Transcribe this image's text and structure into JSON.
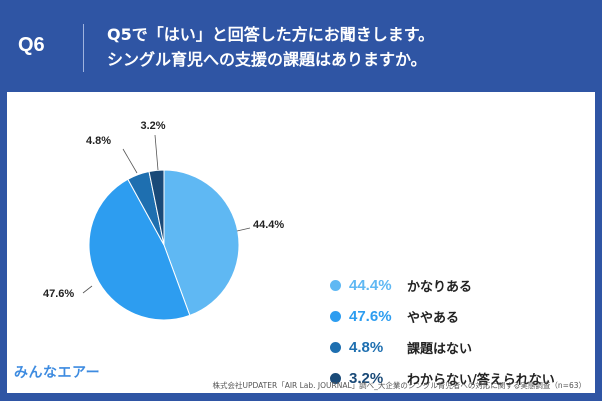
{
  "header": {
    "question_number": "Q6",
    "question_line1": "Q5で「はい」と回答した方にお聞きします。",
    "question_line2": "シングル育児への支援の課題はありますか。"
  },
  "chart_data": {
    "type": "pie",
    "title": "",
    "slices": [
      {
        "label": "かなりある",
        "value": 44.4,
        "value_label": "44.4%",
        "color": "#5fb8f3"
      },
      {
        "label": "ややある",
        "value": 47.6,
        "value_label": "47.6%",
        "color": "#2d9df0"
      },
      {
        "label": "課題はない",
        "value": 4.8,
        "value_label": "4.8%",
        "color": "#1e6fb0"
      },
      {
        "label": "わからない/答えられない",
        "value": 3.2,
        "value_label": "3.2%",
        "color": "#1a4a78"
      }
    ],
    "legend_position": "right"
  },
  "logo": "みんなエアー",
  "source": "株式会社UPDATER「AIR Lab. JOURNAL」調べ_大企業のシングル育児者への対応に関する実態調査（n=63）"
}
